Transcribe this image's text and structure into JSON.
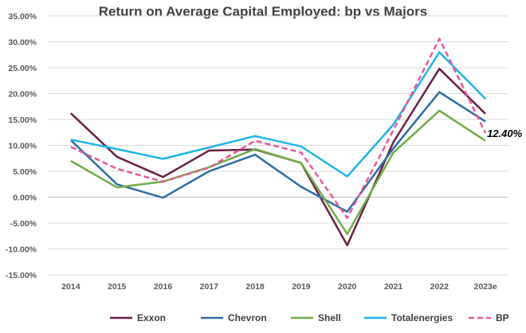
{
  "chart_data": {
    "type": "line",
    "title": "Return on Average Capital Employed: bp vs Majors",
    "xlabel": "",
    "ylabel": "",
    "categories": [
      "2014",
      "2015",
      "2016",
      "2017",
      "2018",
      "2019",
      "2020",
      "2021",
      "2022",
      "2023e"
    ],
    "ylim": [
      -15,
      35
    ],
    "ytick_step": 5,
    "y_format": "percent_2dp",
    "grid": "horizontal",
    "legend_position": "bottom",
    "series": [
      {
        "name": "Exxon",
        "color": "#6b1f45",
        "dash": "solid",
        "values": [
          16.2,
          7.8,
          3.9,
          9.0,
          9.2,
          6.6,
          -9.3,
          10.6,
          24.8,
          16.1
        ]
      },
      {
        "name": "Chevron",
        "color": "#2e6da4",
        "dash": "solid",
        "values": [
          11.0,
          2.5,
          -0.1,
          5.0,
          8.2,
          2.0,
          -2.8,
          9.4,
          20.3,
          14.6
        ]
      },
      {
        "name": "Shell",
        "color": "#70ad47",
        "dash": "solid",
        "values": [
          7.0,
          1.9,
          3.0,
          5.8,
          9.3,
          6.6,
          -7.1,
          8.6,
          16.7,
          10.9
        ]
      },
      {
        "name": "Totalenergies",
        "color": "#1fb4e8",
        "dash": "solid",
        "values": [
          11.1,
          9.3,
          7.4,
          9.6,
          11.8,
          9.8,
          4.0,
          14.0,
          28.0,
          19.0
        ]
      },
      {
        "name": "BP",
        "color": "#e8579a",
        "dash": "dashed",
        "values": [
          9.7,
          5.5,
          3.0,
          5.7,
          10.9,
          8.6,
          -4.0,
          12.9,
          30.6,
          12.4
        ]
      }
    ],
    "annotations": [
      {
        "series": "BP",
        "category": "2023e",
        "text": "12.40%"
      }
    ]
  }
}
